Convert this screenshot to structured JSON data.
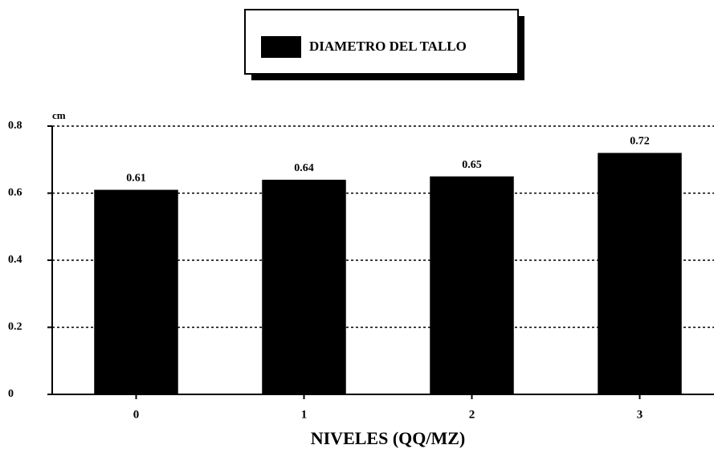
{
  "chart_data": {
    "type": "bar",
    "legend_label": "DIAMETRO DEL TALLO",
    "y_unit": "cm",
    "x_label": "NIVELES (QQ/MZ)",
    "categories": [
      "0",
      "1",
      "2",
      "3"
    ],
    "values": [
      0.61,
      0.64,
      0.65,
      0.72
    ],
    "color": "#000000",
    "ylim": [
      0,
      0.8
    ],
    "yticks": [
      0,
      0.2,
      0.4,
      0.6,
      0.8
    ],
    "grid": true
  }
}
